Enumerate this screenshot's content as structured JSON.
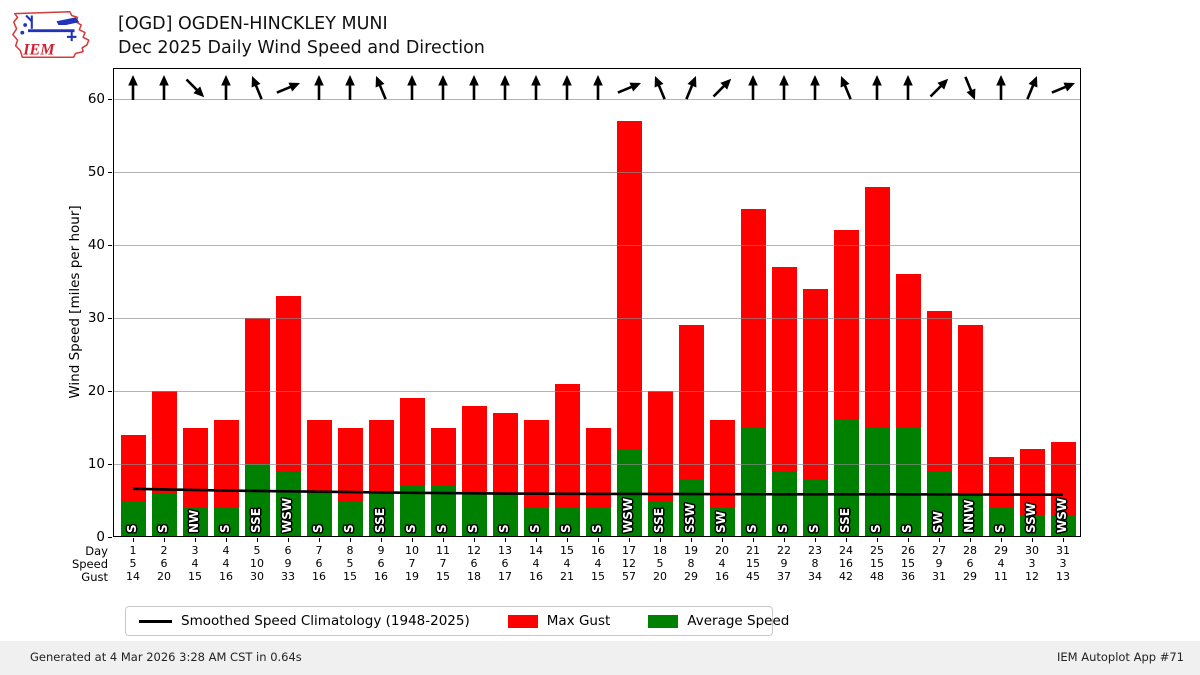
{
  "header": {
    "title_line1": "[OGD] OGDEN-HINCKLEY MUNI",
    "title_line2": "Dec 2025 Daily Wind Speed and Direction",
    "logo_text": "IEM"
  },
  "chart_data": {
    "type": "bar",
    "title": "Dec 2025 Daily Wind Speed and Direction",
    "xlabel": "",
    "ylabel": "Wind Speed [miles per hour]",
    "ylim": [
      0,
      64.2
    ],
    "yticks": [
      0,
      10,
      20,
      30,
      40,
      50,
      60
    ],
    "grid": "horizontal",
    "legend_position": "bottom",
    "days": [
      1,
      2,
      3,
      4,
      5,
      6,
      7,
      8,
      9,
      10,
      11,
      12,
      13,
      14,
      15,
      16,
      17,
      18,
      19,
      20,
      21,
      22,
      23,
      24,
      25,
      26,
      27,
      28,
      29,
      30,
      31
    ],
    "series": [
      {
        "name": "Max Gust",
        "color": "#ff0000",
        "values": [
          14,
          20,
          15,
          16,
          30,
          33,
          16,
          15,
          16,
          19,
          15,
          18,
          17,
          16,
          21,
          15,
          57,
          20,
          29,
          16,
          45,
          37,
          34,
          42,
          48,
          36,
          31,
          29,
          11,
          12,
          13
        ]
      },
      {
        "name": "Average Speed",
        "color": "#008000",
        "values": [
          5,
          6,
          4,
          4,
          10,
          9,
          6,
          5,
          6,
          7,
          7,
          6,
          6,
          4,
          4,
          4,
          12,
          5,
          8,
          4,
          15,
          9,
          8,
          16,
          15,
          15,
          9,
          6,
          4,
          3,
          3
        ]
      }
    ],
    "directions": [
      "S",
      "S",
      "NW",
      "S",
      "SSE",
      "WSW",
      "S",
      "S",
      "SSE",
      "S",
      "S",
      "S",
      "S",
      "S",
      "S",
      "S",
      "WSW",
      "SSE",
      "SSW",
      "SW",
      "S",
      "S",
      "S",
      "SSE",
      "S",
      "S",
      "SW",
      "NNW",
      "S",
      "SSW",
      "WSW"
    ],
    "climatology": {
      "name": "Smoothed Speed Climatology (1948-2025)",
      "color": "#000000",
      "points": [
        [
          1,
          6.6
        ],
        [
          4,
          6.35
        ],
        [
          7,
          6.2
        ],
        [
          10,
          6.05
        ],
        [
          13,
          5.95
        ],
        [
          16,
          5.9
        ],
        [
          19,
          5.88
        ],
        [
          22,
          5.85
        ],
        [
          25,
          5.85
        ],
        [
          28,
          5.82
        ],
        [
          31,
          5.8
        ]
      ]
    },
    "row_labels": {
      "day": "Day",
      "speed": "Speed",
      "gust": "Gust"
    }
  },
  "legend": [
    {
      "label": "Smoothed Speed Climatology (1948-2025)",
      "type": "line",
      "color": "#000000"
    },
    {
      "label": "Max Gust",
      "type": "patch",
      "color": "#ff0000"
    },
    {
      "label": "Average Speed",
      "type": "patch",
      "color": "#008000"
    }
  ],
  "footer": {
    "left": "Generated at 4 Mar 2026 3:28 AM CST in 0.64s",
    "right": "IEM Autoplot App #71"
  }
}
